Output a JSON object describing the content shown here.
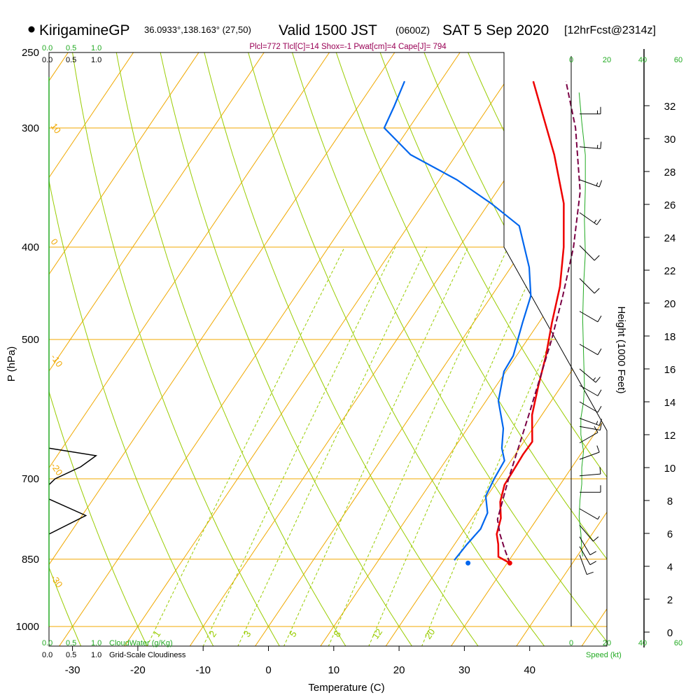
{
  "header": {
    "site": "KirigamineGP",
    "coords": "36.0933°,138.163° (27,50)",
    "valid": "Valid 1500 JST",
    "zulu": "(0600Z)",
    "date": "SAT 5 Sep 2020",
    "fcst": "[12hrFcst@2314z]",
    "params": "Plcl=772 Tlcl[C]=14 Shox=-1 Pwat[cm]=4 Cape[J]= 794"
  },
  "scales": {
    "cloudwater_green": [
      "0.0",
      "0.5",
      "1.0"
    ],
    "cloudiness_black": [
      "0.0",
      "0.5",
      "1.0"
    ],
    "cloudwater_label": "CloudWater (g/Kg)",
    "cloudiness_label": "Grid-Scale Cloudiness",
    "speed_ticks": [
      "0",
      "20",
      "40",
      "60"
    ],
    "speed_label": "Speed (kt)"
  },
  "colors": {
    "isotherm": "#f0a800",
    "dry_adiabat": "#99cc00",
    "mixing_ratio": "#99cc00",
    "temperature": "#ee0000",
    "dewpoint": "#0066ee",
    "parcel": "#7a0044",
    "height_profile": "#22aa22",
    "params_text": "#990055"
  },
  "chart_data": {
    "type": "line",
    "subtype": "skew-T log-P sounding",
    "xlabel": "Temperature (C)",
    "ylabel": "P (hPa)",
    "y2label": "Height (1000 Feet)",
    "x_ticks": [
      -30,
      -20,
      -10,
      0,
      10,
      20,
      30,
      40
    ],
    "p_ticks": [
      250,
      300,
      400,
      500,
      700,
      850,
      1000
    ],
    "height_ticks": [
      0,
      2,
      4,
      6,
      8,
      10,
      12,
      14,
      16,
      18,
      20,
      22,
      24,
      26,
      28,
      30,
      32
    ],
    "mixing_ratio_labels": [
      "1",
      "2",
      "3",
      "5",
      "8",
      "12",
      "20"
    ],
    "isotherm_labels": [
      "0",
      "10",
      "20",
      "30"
    ],
    "adiabat_labels": [
      "10",
      "0",
      "-10",
      "-20",
      "-30"
    ],
    "series": [
      {
        "name": "temperature",
        "points": [
          {
            "p": 858,
            "t": 30.4
          },
          {
            "p": 845,
            "t": 28.0
          },
          {
            "p": 820,
            "t": 26.7
          },
          {
            "p": 800,
            "t": 25.4
          },
          {
            "p": 770,
            "t": 24.4
          },
          {
            "p": 740,
            "t": 22.6
          },
          {
            "p": 710,
            "t": 21.5
          },
          {
            "p": 690,
            "t": 21.4
          },
          {
            "p": 660,
            "t": 21.2
          },
          {
            "p": 640,
            "t": 21.3
          },
          {
            "p": 600,
            "t": 18.5
          },
          {
            "p": 560,
            "t": 16.5
          },
          {
            "p": 520,
            "t": 14.5
          },
          {
            "p": 480,
            "t": 12.0
          },
          {
            "p": 440,
            "t": 9.5
          },
          {
            "p": 400,
            "t": 6.0
          },
          {
            "p": 360,
            "t": 1.5
          },
          {
            "p": 320,
            "t": -5.0
          },
          {
            "p": 290,
            "t": -11.0
          },
          {
            "p": 268,
            "t": -15.8
          }
        ]
      },
      {
        "name": "dewpoint",
        "points": [
          {
            "p": 852,
            "t": 21.6
          },
          {
            "p": 820,
            "t": 21.9
          },
          {
            "p": 790,
            "t": 22.4
          },
          {
            "p": 760,
            "t": 21.8
          },
          {
            "p": 730,
            "t": 19.8
          },
          {
            "p": 700,
            "t": 19.3
          },
          {
            "p": 670,
            "t": 19.0
          },
          {
            "p": 650,
            "t": 17.3
          },
          {
            "p": 620,
            "t": 15.5
          },
          {
            "p": 580,
            "t": 11.9
          },
          {
            "p": 540,
            "t": 9.7
          },
          {
            "p": 520,
            "t": 9.5
          },
          {
            "p": 480,
            "t": 7.5
          },
          {
            "p": 450,
            "t": 6.0
          },
          {
            "p": 420,
            "t": 2.8
          },
          {
            "p": 380,
            "t": -3.0
          },
          {
            "p": 360,
            "t": -9.6
          },
          {
            "p": 340,
            "t": -17.3
          },
          {
            "p": 320,
            "t": -27.0
          },
          {
            "p": 300,
            "t": -33.8
          },
          {
            "p": 285,
            "t": -34.5
          },
          {
            "p": 268,
            "t": -35.5
          }
        ]
      },
      {
        "name": "parcel",
        "points": [
          {
            "p": 858,
            "t": 30.4
          },
          {
            "p": 830,
            "t": 28.2
          },
          {
            "p": 800,
            "t": 25.9
          },
          {
            "p": 772,
            "t": 24.0
          },
          {
            "p": 700,
            "t": 21.5
          },
          {
            "p": 600,
            "t": 18.0
          },
          {
            "p": 500,
            "t": 13.7
          },
          {
            "p": 450,
            "t": 10.9
          },
          {
            "p": 400,
            "t": 7.5
          },
          {
            "p": 350,
            "t": 2.8
          },
          {
            "p": 300,
            "t": -4.5
          },
          {
            "p": 268,
            "t": -10.8
          }
        ]
      }
    ],
    "surface_temperature": {
      "p": 858,
      "t": 30.4
    },
    "surface_dewpoint": {
      "p": 858,
      "t": 24.0
    },
    "cloud_water_profile": [
      {
        "p": 650,
        "v": 0.0
      },
      {
        "p": 662,
        "v": 0.92
      },
      {
        "p": 680,
        "v": 0.62
      },
      {
        "p": 700,
        "v": 0.12
      },
      {
        "p": 710,
        "v": 0.0
      }
    ],
    "cloudiness_profile": [
      {
        "p": 735,
        "v": 0.0
      },
      {
        "p": 765,
        "v": 0.72
      },
      {
        "p": 800,
        "v": 0.0
      }
    ],
    "wind_speed_profile": [
      {
        "h": 32.8,
        "s": 0.5
      },
      {
        "h": 31.0,
        "s": 2
      },
      {
        "h": 29.0,
        "s": 4
      },
      {
        "h": 27.0,
        "s": 4
      },
      {
        "h": 25.0,
        "s": 3.5
      },
      {
        "h": 23.0,
        "s": 4
      },
      {
        "h": 21.0,
        "s": 3
      },
      {
        "h": 19.0,
        "s": 2.5
      },
      {
        "h": 17.0,
        "s": 3
      },
      {
        "h": 15.0,
        "s": 3.5
      },
      {
        "h": 14.0,
        "s": 3
      },
      {
        "h": 13.0,
        "s": 1.5
      },
      {
        "h": 12.0,
        "s": 1.5
      },
      {
        "h": 11.0,
        "s": 3
      },
      {
        "h": 10.0,
        "s": 2
      },
      {
        "h": 9.0,
        "s": 2
      },
      {
        "h": 8.0,
        "s": 1
      },
      {
        "h": 7.0,
        "s": 0.5
      },
      {
        "h": 6.0,
        "s": 1.5
      },
      {
        "h": 5.0,
        "s": 2
      },
      {
        "h": 4.6,
        "s": 2.5
      }
    ],
    "wind_barbs": [
      {
        "h": 31.5,
        "dir": 270,
        "spd": 15
      },
      {
        "h": 29.5,
        "dir": 275,
        "spd": 15
      },
      {
        "h": 27.5,
        "dir": 290,
        "spd": 15
      },
      {
        "h": 25.5,
        "dir": 305,
        "spd": 15
      },
      {
        "h": 23.5,
        "dir": 315,
        "spd": 10
      },
      {
        "h": 21.5,
        "dir": 315,
        "spd": 10
      },
      {
        "h": 19.5,
        "dir": 300,
        "spd": 10
      },
      {
        "h": 17.5,
        "dir": 300,
        "spd": 10
      },
      {
        "h": 16.0,
        "dir": 310,
        "spd": 15
      },
      {
        "h": 15.0,
        "dir": 300,
        "spd": 10
      },
      {
        "h": 14.0,
        "dir": 300,
        "spd": 10
      },
      {
        "h": 13.0,
        "dir": 290,
        "spd": 15
      },
      {
        "h": 12.5,
        "dir": 280,
        "spd": 10
      },
      {
        "h": 11.5,
        "dir": 240,
        "spd": 10
      },
      {
        "h": 10.5,
        "dir": 250,
        "spd": 10
      },
      {
        "h": 9.5,
        "dir": 265,
        "spd": 10
      },
      {
        "h": 8.5,
        "dir": 270,
        "spd": 10
      },
      {
        "h": 7.5,
        "dir": 300,
        "spd": 5
      },
      {
        "h": 6.5,
        "dir": 320,
        "spd": 10
      },
      {
        "h": 5.8,
        "dir": 330,
        "spd": 10
      },
      {
        "h": 5.2,
        "dir": 330,
        "spd": 10
      },
      {
        "h": 4.7,
        "dir": 340,
        "spd": 10
      }
    ]
  }
}
